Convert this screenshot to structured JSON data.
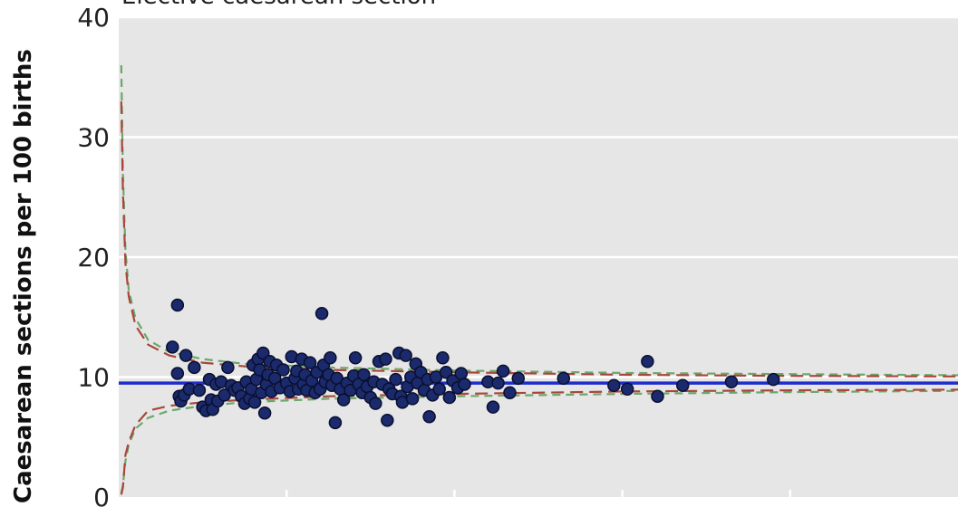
{
  "chart_data": {
    "type": "scatter",
    "title": "Elective caesarean section",
    "xlabel": "",
    "ylabel": "Caesarean sections per 100 births",
    "ylim": [
      0,
      40
    ],
    "yticks": [
      "0",
      "10",
      "20",
      "30",
      "40"
    ],
    "xlim": [
      0,
      1000
    ],
    "grid": true,
    "mean_line": 9.5,
    "limits_95": {
      "x": [
        3,
        5,
        8,
        12,
        20,
        35,
        60,
        100,
        150,
        250,
        400,
        600,
        800,
        1000
      ],
      "upper": [
        33,
        25.5,
        19.5,
        16.7,
        14.3,
        12.7,
        11.8,
        11.2,
        10.9,
        10.6,
        10.4,
        10.2,
        10.1,
        10.05
      ],
      "lower": [
        0.2,
        0.8,
        3.5,
        4.6,
        6.0,
        7.2,
        7.6,
        7.9,
        8.1,
        8.4,
        8.6,
        8.8,
        8.9,
        8.95
      ]
    },
    "limits_998": {
      "x": [
        3,
        5,
        8,
        12,
        20,
        35,
        60,
        100,
        150,
        250,
        400,
        600,
        800,
        1000
      ],
      "upper": [
        36,
        27,
        20.6,
        17.2,
        14.9,
        13.1,
        12.1,
        11.5,
        11.1,
        10.8,
        10.55,
        10.35,
        10.25,
        10.15
      ],
      "lower": [
        0.3,
        1.0,
        3.0,
        4.4,
        5.7,
        6.6,
        7.2,
        7.6,
        7.9,
        8.2,
        8.4,
        8.6,
        8.75,
        8.85
      ]
    },
    "points": [
      {
        "x": 64,
        "y": 12.5
      },
      {
        "x": 70,
        "y": 16.0
      },
      {
        "x": 70,
        "y": 10.3
      },
      {
        "x": 72,
        "y": 8.4
      },
      {
        "x": 74,
        "y": 8.0
      },
      {
        "x": 78,
        "y": 8.5
      },
      {
        "x": 80,
        "y": 11.8
      },
      {
        "x": 84,
        "y": 9.0
      },
      {
        "x": 90,
        "y": 10.8
      },
      {
        "x": 96,
        "y": 8.9
      },
      {
        "x": 100,
        "y": 7.5
      },
      {
        "x": 104,
        "y": 7.2
      },
      {
        "x": 108,
        "y": 9.8
      },
      {
        "x": 110,
        "y": 8.1
      },
      {
        "x": 112,
        "y": 7.3
      },
      {
        "x": 116,
        "y": 9.4
      },
      {
        "x": 118,
        "y": 8.0
      },
      {
        "x": 122,
        "y": 9.6
      },
      {
        "x": 126,
        "y": 8.5
      },
      {
        "x": 130,
        "y": 10.8
      },
      {
        "x": 134,
        "y": 9.3
      },
      {
        "x": 138,
        "y": 8.9
      },
      {
        "x": 142,
        "y": 9.1
      },
      {
        "x": 146,
        "y": 8.4
      },
      {
        "x": 150,
        "y": 7.8
      },
      {
        "x": 152,
        "y": 9.6
      },
      {
        "x": 156,
        "y": 8.2
      },
      {
        "x": 158,
        "y": 9.0
      },
      {
        "x": 160,
        "y": 11.0
      },
      {
        "x": 162,
        "y": 7.9
      },
      {
        "x": 164,
        "y": 9.8
      },
      {
        "x": 166,
        "y": 11.5
      },
      {
        "x": 168,
        "y": 10.6
      },
      {
        "x": 170,
        "y": 8.7
      },
      {
        "x": 172,
        "y": 12.0
      },
      {
        "x": 174,
        "y": 7.0
      },
      {
        "x": 176,
        "y": 9.4
      },
      {
        "x": 178,
        "y": 10.2
      },
      {
        "x": 180,
        "y": 11.3
      },
      {
        "x": 182,
        "y": 8.8
      },
      {
        "x": 186,
        "y": 9.9
      },
      {
        "x": 188,
        "y": 11.0
      },
      {
        "x": 192,
        "y": 9.1
      },
      {
        "x": 196,
        "y": 10.6
      },
      {
        "x": 200,
        "y": 9.5
      },
      {
        "x": 204,
        "y": 8.8
      },
      {
        "x": 206,
        "y": 11.7
      },
      {
        "x": 210,
        "y": 9.9
      },
      {
        "x": 212,
        "y": 10.5
      },
      {
        "x": 214,
        "y": 9.0
      },
      {
        "x": 218,
        "y": 11.5
      },
      {
        "x": 220,
        "y": 9.4
      },
      {
        "x": 222,
        "y": 10.2
      },
      {
        "x": 224,
        "y": 8.9
      },
      {
        "x": 228,
        "y": 11.2
      },
      {
        "x": 230,
        "y": 9.7
      },
      {
        "x": 234,
        "y": 8.7
      },
      {
        "x": 236,
        "y": 10.4
      },
      {
        "x": 240,
        "y": 9.0
      },
      {
        "x": 242,
        "y": 15.3
      },
      {
        "x": 244,
        "y": 11.0
      },
      {
        "x": 246,
        "y": 9.6
      },
      {
        "x": 250,
        "y": 10.2
      },
      {
        "x": 252,
        "y": 11.6
      },
      {
        "x": 254,
        "y": 9.3
      },
      {
        "x": 258,
        "y": 6.2
      },
      {
        "x": 260,
        "y": 9.9
      },
      {
        "x": 264,
        "y": 9.0
      },
      {
        "x": 268,
        "y": 8.1
      },
      {
        "x": 272,
        "y": 9.5
      },
      {
        "x": 276,
        "y": 8.9
      },
      {
        "x": 280,
        "y": 10.1
      },
      {
        "x": 282,
        "y": 11.6
      },
      {
        "x": 286,
        "y": 9.4
      },
      {
        "x": 290,
        "y": 8.7
      },
      {
        "x": 292,
        "y": 10.2
      },
      {
        "x": 296,
        "y": 9.2
      },
      {
        "x": 300,
        "y": 8.3
      },
      {
        "x": 304,
        "y": 9.6
      },
      {
        "x": 306,
        "y": 7.8
      },
      {
        "x": 310,
        "y": 11.3
      },
      {
        "x": 314,
        "y": 9.4
      },
      {
        "x": 318,
        "y": 11.5
      },
      {
        "x": 320,
        "y": 6.4
      },
      {
        "x": 322,
        "y": 9.0
      },
      {
        "x": 326,
        "y": 8.6
      },
      {
        "x": 330,
        "y": 9.8
      },
      {
        "x": 334,
        "y": 12.0
      },
      {
        "x": 336,
        "y": 8.4
      },
      {
        "x": 338,
        "y": 7.9
      },
      {
        "x": 342,
        "y": 11.8
      },
      {
        "x": 344,
        "y": 9.2
      },
      {
        "x": 348,
        "y": 10.0
      },
      {
        "x": 350,
        "y": 8.2
      },
      {
        "x": 354,
        "y": 11.1
      },
      {
        "x": 356,
        "y": 9.5
      },
      {
        "x": 360,
        "y": 10.4
      },
      {
        "x": 364,
        "y": 8.9
      },
      {
        "x": 368,
        "y": 9.8
      },
      {
        "x": 370,
        "y": 6.7
      },
      {
        "x": 374,
        "y": 8.5
      },
      {
        "x": 378,
        "y": 10.0
      },
      {
        "x": 382,
        "y": 9.0
      },
      {
        "x": 386,
        "y": 11.6
      },
      {
        "x": 390,
        "y": 10.4
      },
      {
        "x": 394,
        "y": 8.3
      },
      {
        "x": 398,
        "y": 9.7
      },
      {
        "x": 404,
        "y": 9.1
      },
      {
        "x": 408,
        "y": 10.3
      },
      {
        "x": 412,
        "y": 9.4
      },
      {
        "x": 440,
        "y": 9.6
      },
      {
        "x": 446,
        "y": 7.5
      },
      {
        "x": 452,
        "y": 9.5
      },
      {
        "x": 458,
        "y": 10.5
      },
      {
        "x": 466,
        "y": 8.7
      },
      {
        "x": 476,
        "y": 9.9
      },
      {
        "x": 530,
        "y": 9.9
      },
      {
        "x": 590,
        "y": 9.3
      },
      {
        "x": 606,
        "y": 9.0
      },
      {
        "x": 630,
        "y": 11.3
      },
      {
        "x": 642,
        "y": 8.4
      },
      {
        "x": 672,
        "y": 9.3
      },
      {
        "x": 730,
        "y": 9.6
      },
      {
        "x": 780,
        "y": 9.8
      }
    ],
    "colors": {
      "background": "#e6e6e6",
      "grid": "#ffffff",
      "points": "#1a2a6c",
      "mean_line": "#1f2dcc",
      "limit_95": "#a8463c",
      "limit_998": "#6aa86a"
    }
  }
}
